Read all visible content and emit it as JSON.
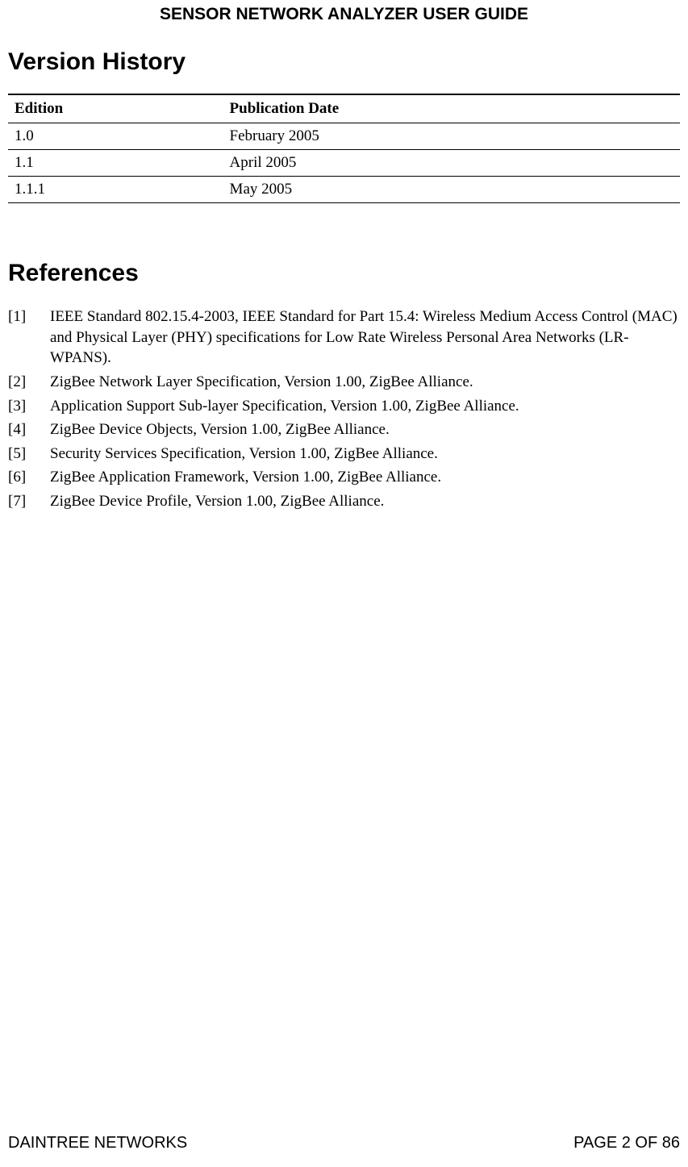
{
  "header": {
    "title": "SENSOR NETWORK ANALYZER USER GUIDE"
  },
  "version_history": {
    "heading": "Version History",
    "columns": [
      "Edition",
      "Publication Date"
    ],
    "rows": [
      [
        "1.0",
        "February 2005"
      ],
      [
        "1.1",
        "April 2005"
      ],
      [
        "1.1.1",
        "May 2005"
      ]
    ]
  },
  "references": {
    "heading": "References",
    "items": [
      {
        "num": "[1]",
        "text": "IEEE Standard 802.15.4-2003, IEEE Standard for Part 15.4: Wireless Medium Access Control (MAC) and Physical Layer (PHY) specifications for Low Rate Wireless Personal Area Networks (LR-WPANS)."
      },
      {
        "num": "[2]",
        "text": "ZigBee Network Layer Specification, Version 1.00, ZigBee Alliance."
      },
      {
        "num": "[3]",
        "text": "Application Support Sub-layer Specification, Version 1.00, ZigBee Alliance."
      },
      {
        "num": "[4]",
        "text": "ZigBee Device Objects, Version 1.00, ZigBee Alliance."
      },
      {
        "num": "[5]",
        "text": "Security Services Specification, Version 1.00, ZigBee Alliance."
      },
      {
        "num": "[6]",
        "text": "ZigBee Application Framework, Version 1.00, ZigBee Alliance."
      },
      {
        "num": "[7]",
        "text": "ZigBee Device Profile, Version 1.00, ZigBee Alliance."
      }
    ]
  },
  "footer": {
    "left": "DAINTREE NETWORKS",
    "right": "PAGE 2 OF 86"
  }
}
